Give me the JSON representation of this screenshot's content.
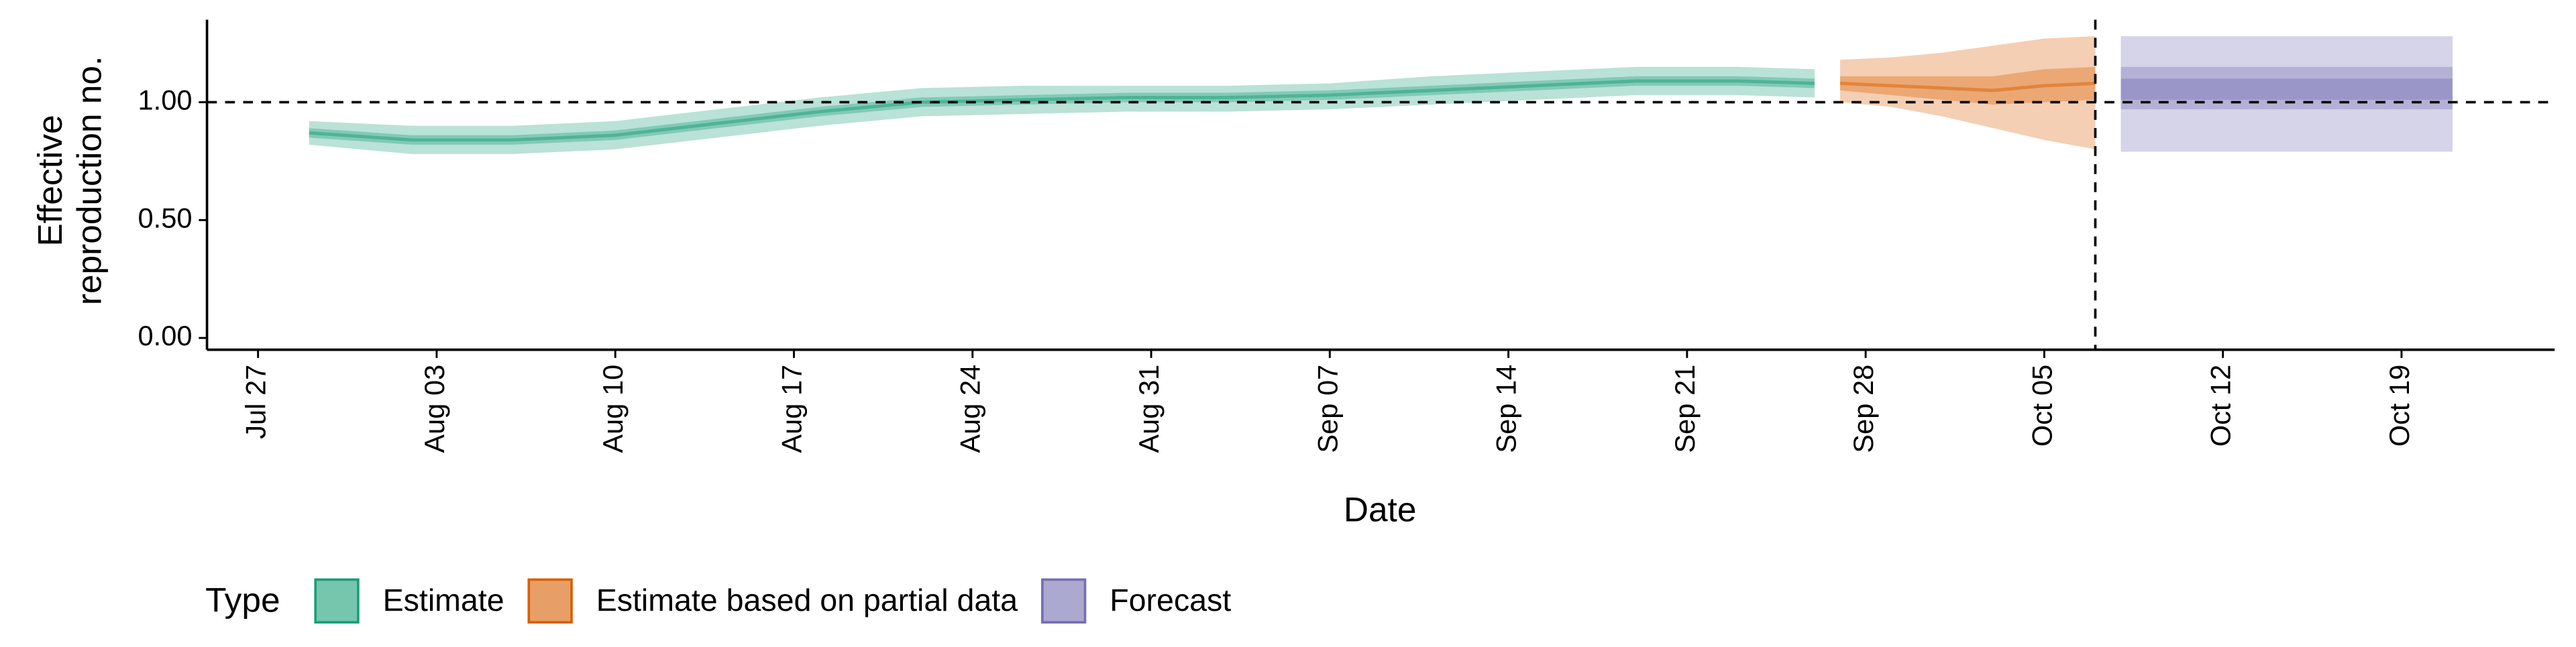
{
  "chart_data": {
    "type": "ribbon",
    "ylabel": [
      "Effective",
      "reproduction no."
    ],
    "xlabel": "Date",
    "xlim": [
      "Jul 25",
      "Oct 25"
    ],
    "xticks": [
      "Jul 27",
      "Aug 03",
      "Aug 10",
      "Aug 17",
      "Aug 24",
      "Aug 31",
      "Sep 07",
      "Sep 14",
      "Sep 21",
      "Sep 28",
      "Oct 05",
      "Oct 12",
      "Oct 19"
    ],
    "ylim": [
      -0.05,
      1.35
    ],
    "yticks": [
      {
        "value": 0,
        "label": "0.00"
      },
      {
        "value": 0.5,
        "label": "0.50"
      },
      {
        "value": 1,
        "label": "1.00"
      }
    ],
    "hline": 1,
    "vline": "Oct 07",
    "legend_title": "Type",
    "legend": "bottom-left",
    "series": [
      {
        "name": "Estimate",
        "color": "#1b9e77",
        "x": [
          "Jul 29",
          "Aug 02",
          "Aug 06",
          "Aug 10",
          "Aug 14",
          "Aug 18",
          "Aug 22",
          "Aug 26",
          "Aug 30",
          "Sep 03",
          "Sep 07",
          "Sep 11",
          "Sep 15",
          "Sep 19",
          "Sep 23",
          "Sep 26"
        ],
        "median": [
          0.87,
          0.84,
          0.84,
          0.86,
          0.91,
          0.96,
          1.0,
          1.01,
          1.02,
          1.02,
          1.03,
          1.05,
          1.07,
          1.09,
          1.09,
          1.08
        ],
        "bands": [
          {
            "lower": [
              0.82,
              0.78,
              0.78,
              0.8,
              0.85,
              0.9,
              0.94,
              0.95,
              0.96,
              0.96,
              0.97,
              0.99,
              1.01,
              1.03,
              1.03,
              1.02
            ],
            "upper": [
              0.92,
              0.9,
              0.9,
              0.92,
              0.97,
              1.02,
              1.06,
              1.07,
              1.07,
              1.07,
              1.08,
              1.11,
              1.13,
              1.15,
              1.15,
              1.14
            ]
          },
          {
            "lower": [
              0.85,
              0.82,
              0.82,
              0.84,
              0.89,
              0.94,
              0.98,
              0.99,
              1.0,
              1.0,
              1.01,
              1.03,
              1.05,
              1.07,
              1.07,
              1.06
            ],
            "upper": [
              0.89,
              0.86,
              0.86,
              0.88,
              0.93,
              0.98,
              1.02,
              1.03,
              1.04,
              1.04,
              1.05,
              1.07,
              1.09,
              1.11,
              1.11,
              1.1
            ]
          }
        ]
      },
      {
        "name": "Estimate based on partial data",
        "color": "#d95f02",
        "x": [
          "Sep 27",
          "Sep 29",
          "Oct 01",
          "Oct 03",
          "Oct 05",
          "Oct 07"
        ],
        "median": [
          1.08,
          1.07,
          1.06,
          1.05,
          1.07,
          1.08
        ],
        "bands": [
          {
            "lower": [
              1.0,
              0.98,
              0.94,
              0.89,
              0.84,
              0.8
            ],
            "upper": [
              1.18,
              1.19,
              1.21,
              1.24,
              1.27,
              1.28
            ]
          },
          {
            "lower": [
              1.05,
              1.03,
              1.01,
              0.99,
              1.0,
              1.01
            ],
            "upper": [
              1.11,
              1.11,
              1.11,
              1.11,
              1.14,
              1.15
            ]
          }
        ]
      },
      {
        "name": "Forecast",
        "color": "#7570b3",
        "x": [
          "Oct 08",
          "Oct 21"
        ],
        "bands": [
          {
            "lower": [
              0.79,
              0.79
            ],
            "upper": [
              1.28,
              1.28
            ]
          },
          {
            "lower": [
              0.97,
              0.97
            ],
            "upper": [
              1.15,
              1.15
            ]
          },
          {
            "lower": [
              1.01,
              1.01
            ],
            "upper": [
              1.1,
              1.1
            ]
          }
        ]
      }
    ]
  }
}
